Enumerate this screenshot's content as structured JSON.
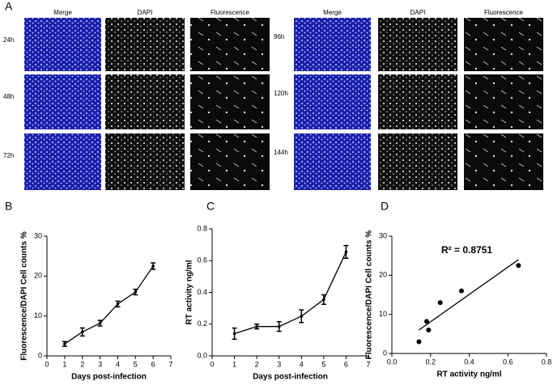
{
  "panel_a": {
    "label": "A",
    "columns": [
      "Merge",
      "DAPI",
      "Fluorescence"
    ],
    "rows_left": [
      "24h",
      "48h",
      "72h"
    ],
    "rows_right": [
      "96h",
      "120h",
      "144h"
    ]
  },
  "chart_data": [
    {
      "panel": "B",
      "type": "line",
      "ylabel": "Fluorescence/DAPI Cell counts %",
      "xlabel": "Days post-infection",
      "x": [
        1,
        2,
        3,
        4,
        5,
        6
      ],
      "series": [
        {
          "color": "#000000",
          "values": [
            3,
            6,
            8.2,
            13,
            16,
            22.5
          ],
          "errors": [
            0.6,
            1,
            0.7,
            0.7,
            0.7,
            0.8
          ]
        }
      ],
      "xlim": [
        0,
        7
      ],
      "xticks": [
        0,
        1,
        2,
        3,
        4,
        5,
        6,
        7
      ],
      "ylim": [
        0,
        30
      ],
      "yticks": [
        0,
        10,
        20,
        30
      ]
    },
    {
      "panel": "C",
      "type": "line",
      "ylabel": "RT activity ng/ml",
      "xlabel": "Days post-infection",
      "x": [
        1,
        2,
        3,
        4,
        5,
        6
      ],
      "series": [
        {
          "color": "#000000",
          "values": [
            0.14,
            0.185,
            0.185,
            0.25,
            0.355,
            0.655
          ],
          "errors": [
            0.035,
            0.015,
            0.03,
            0.04,
            0.03,
            0.04
          ]
        }
      ],
      "xlim": [
        0,
        7
      ],
      "xticks": [
        0,
        1,
        2,
        3,
        4,
        5,
        6,
        7
      ],
      "ylim": [
        0,
        0.8
      ],
      "yticks": [
        {
          "value": 0,
          "label": "0.0"
        },
        0.2,
        0.4,
        0.6,
        0.8
      ]
    },
    {
      "panel": "D",
      "type": "scatter",
      "ylabel": "Fluorescence/DAPI Cell counts %",
      "xlabel": "RT activity ng/ml",
      "x": [
        0.14,
        0.18,
        0.19,
        0.25,
        0.36,
        0.655
      ],
      "series": [
        {
          "color": "#000000",
          "values": [
            3,
            8.2,
            6,
            13,
            16,
            22.5
          ]
        }
      ],
      "fit": {
        "x": [
          0.14,
          0.655
        ],
        "y": [
          6,
          24
        ]
      },
      "annotation": "R² = 0.8751",
      "xlim": [
        0,
        0.8
      ],
      "xticks": [
        {
          "value": 0,
          "label": "0.0"
        },
        0.2,
        0.4,
        0.6,
        0.8
      ],
      "ylim": [
        0,
        30
      ],
      "yticks": [
        0,
        10,
        20,
        30
      ]
    }
  ]
}
